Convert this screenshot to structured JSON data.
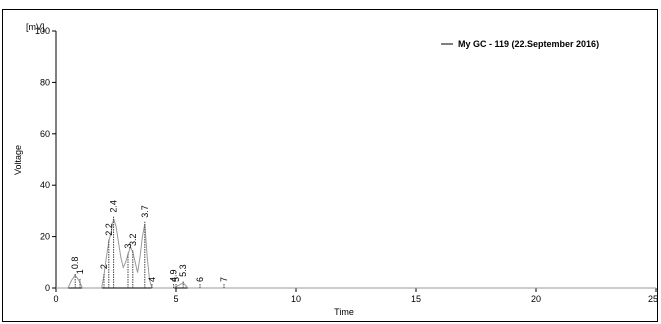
{
  "chart_data": {
    "type": "line",
    "title": "",
    "xlabel": "Time",
    "ylabel": "Voltage",
    "yunit": "[mV]",
    "xlim": [
      0,
      25
    ],
    "ylim": [
      0,
      100
    ],
    "xticks": [
      0,
      5,
      10,
      15,
      20,
      25
    ],
    "yticks": [
      0,
      20,
      40,
      60,
      80,
      100
    ],
    "grid": false,
    "legend": {
      "placement": "top-right",
      "entries": [
        "My GC - 119 (22.September 2016)"
      ]
    },
    "series": [
      {
        "name": "My GC - 119 (22.September 2016)",
        "x": [
          0,
          0.5,
          0.65,
          0.8,
          0.95,
          1.1,
          1.9,
          2.0,
          2.1,
          2.2,
          2.3,
          2.4,
          2.5,
          2.6,
          2.7,
          2.8,
          2.9,
          3.0,
          3.1,
          3.2,
          3.3,
          3.4,
          3.5,
          3.6,
          3.7,
          3.8,
          3.9,
          4.0,
          4.9,
          5.1,
          5.3,
          5.5,
          25
        ],
        "y": [
          0,
          0,
          3,
          5,
          3,
          0,
          0,
          5,
          12,
          18,
          22,
          27,
          24,
          18,
          12,
          8,
          10,
          13,
          16,
          14,
          10,
          6,
          12,
          20,
          25,
          12,
          3,
          0,
          0,
          1,
          2,
          0,
          0
        ]
      }
    ],
    "peaks": [
      {
        "label": "0.8",
        "x": 0.8,
        "y": 5
      },
      {
        "label": "1",
        "x": 1.0,
        "y": 3
      },
      {
        "label": "2.2",
        "x": 2.2,
        "y": 18
      },
      {
        "label": "2",
        "x": 2.0,
        "y": 5
      },
      {
        "label": "2.4",
        "x": 2.4,
        "y": 27
      },
      {
        "label": "3",
        "x": 3.0,
        "y": 13
      },
      {
        "label": "3.2",
        "x": 3.2,
        "y": 14
      },
      {
        "label": "4",
        "x": 4.0,
        "y": 0
      },
      {
        "label": "3.7",
        "x": 3.7,
        "y": 25
      },
      {
        "label": "5",
        "x": 5.0,
        "y": 0
      },
      {
        "label": "4.9",
        "x": 4.9,
        "y": 0
      },
      {
        "label": "6",
        "x": 6.0,
        "y": 0
      },
      {
        "label": "5.3",
        "x": 5.3,
        "y": 2
      },
      {
        "label": "7",
        "x": 7.0,
        "y": 0
      }
    ]
  }
}
